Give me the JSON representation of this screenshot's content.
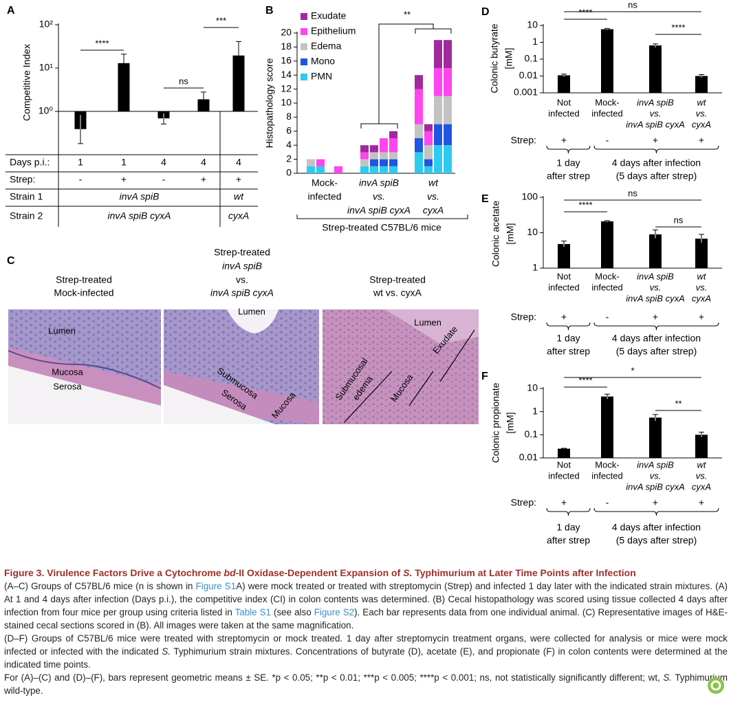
{
  "chart_data": [
    {
      "type": "bar",
      "panel": "A",
      "y_label": "Competitive Index",
      "log_scale": true,
      "ylim": [
        0.1,
        100
      ],
      "yticks": [
        {
          "value": 1,
          "label": "10⁰"
        },
        {
          "value": 10,
          "label": "10¹"
        },
        {
          "value": 100,
          "label": "10²"
        }
      ],
      "values": [
        0.39,
        13,
        0.69,
        1.9,
        19.5
      ],
      "errors_low": [
        0.18,
        5.5,
        0.51,
        1.08,
        6.9
      ],
      "errors_high": [
        0.83,
        21,
        0.9,
        2.8,
        41
      ],
      "color": "#000000",
      "annotations": [
        "****",
        "ns",
        "***"
      ],
      "table": {
        "rows": [
          [
            "Days p.i.:",
            "1",
            "1",
            "4",
            "4",
            "4"
          ],
          [
            "Strep:",
            "-",
            "+",
            "-",
            "+",
            "+"
          ],
          [
            "Strain 1",
            "invA spiB",
            "wt"
          ],
          [
            "Strain 2",
            "invA spiB cyxA",
            "cyxA"
          ]
        ]
      }
    },
    {
      "type": "stacked_bar",
      "panel": "B",
      "y_label": "Histopathology score",
      "ylim": [
        0,
        20
      ],
      "yticks": [
        0,
        2,
        4,
        6,
        8,
        10,
        12,
        14,
        16,
        18,
        20
      ],
      "legend": "upper left",
      "categories": [
        null,
        null,
        null,
        null,
        null,
        null,
        null,
        null,
        null,
        null,
        null,
        null
      ],
      "group_labels": [
        [
          "Mock-",
          "infected"
        ],
        [
          "invA spiB",
          "vs.",
          "invA spiB cyxA"
        ],
        [
          "wt",
          "vs.",
          "cyxA"
        ]
      ],
      "x_label": "Strep-treated C57BL/6 mice",
      "annotations": [
        "**"
      ],
      "series": [
        {
          "name": "PMN",
          "color": "#2ecbf0",
          "values": [
            1,
            1,
            0,
            0,
            1,
            1,
            1,
            1,
            3,
            1,
            4,
            4
          ]
        },
        {
          "name": "Mono",
          "color": "#1f55e0",
          "values": [
            0,
            0,
            0,
            0,
            0,
            1,
            1,
            1,
            2,
            1,
            3,
            3
          ]
        },
        {
          "name": "Edema",
          "color": "#c3c3c3",
          "values": [
            1,
            0,
            0,
            0,
            1,
            1,
            1,
            1,
            2,
            2,
            4,
            4
          ]
        },
        {
          "name": "Epithelium",
          "color": "#ff45ee",
          "values": [
            0,
            1,
            0,
            1,
            1,
            0,
            2,
            2,
            5,
            2,
            4,
            4
          ]
        },
        {
          "name": "Exudate",
          "color": "#a02a9c",
          "values": [
            0,
            0,
            0,
            0,
            1,
            1,
            0,
            1,
            2,
            1,
            4,
            4
          ]
        }
      ]
    },
    {
      "type": "bar",
      "panel": "D",
      "y_label": [
        "Colonic butyrate",
        "[mM]"
      ],
      "log_scale": true,
      "ylim": [
        0.001,
        10
      ],
      "yticks": [
        0.001,
        0.01,
        0.1,
        1,
        10
      ],
      "categories": [
        [
          "Not",
          "infected"
        ],
        [
          "Mock-",
          "infected"
        ],
        [
          "invA spiB",
          "vs.",
          "invA spiB cyxA"
        ],
        [
          "wt",
          "vs.",
          "cyxA"
        ]
      ],
      "values": [
        0.011,
        6,
        0.65,
        0.01
      ],
      "errors_low": [
        0.009,
        5.5,
        0.5,
        0.008
      ],
      "errors_high": [
        0.013,
        6.6,
        0.8,
        0.012
      ],
      "color": "#000000",
      "annotations": [
        "****",
        "ns",
        "****"
      ],
      "strep_label": "Strep:",
      "strep": [
        "+",
        "-",
        "+",
        "+"
      ],
      "time_groups": [
        [
          "1 day",
          "after strep"
        ],
        [
          "4 days after infection",
          "(5 days after strep)"
        ]
      ]
    },
    {
      "type": "bar",
      "panel": "E",
      "y_label": [
        "Colonic acetate",
        "[mM]"
      ],
      "log_scale": true,
      "ylim": [
        1,
        100
      ],
      "yticks": [
        1,
        10,
        100
      ],
      "categories": [
        [
          "Not",
          "infected"
        ],
        [
          "Mock-",
          "infected"
        ],
        [
          "invA spiB",
          "vs.",
          "invA spiB cyxA"
        ],
        [
          "wt",
          "vs.",
          "cyxA"
        ]
      ],
      "values": [
        4.8,
        21,
        9,
        6.8
      ],
      "errors_low": [
        4,
        20,
        7,
        5.2
      ],
      "errors_high": [
        5.8,
        22,
        12,
        9
      ],
      "color": "#000000",
      "annotations": [
        "****",
        "ns",
        "ns"
      ],
      "strep_label": "Strep:",
      "strep": [
        "+",
        "-",
        "+",
        "+"
      ],
      "time_groups": [
        [
          "1 day",
          "after strep"
        ],
        [
          "4 days after infection",
          "(5 days after strep)"
        ]
      ]
    },
    {
      "type": "bar",
      "panel": "F",
      "y_label": [
        "Colonic propionate",
        "[mM]"
      ],
      "log_scale": true,
      "ylim": [
        0.01,
        10
      ],
      "yticks": [
        0.01,
        0.1,
        1,
        10
      ],
      "categories": [
        [
          "Not",
          "infected"
        ],
        [
          "Mock-",
          "infected"
        ],
        [
          "invA spiB",
          "vs.",
          "invA spiB cyxA"
        ],
        [
          "wt",
          "vs.",
          "cyxA"
        ]
      ],
      "values": [
        0.025,
        4.5,
        0.55,
        0.1
      ],
      "errors_low": [
        0.024,
        3.5,
        0.4,
        0.08
      ],
      "errors_high": [
        0.026,
        5.7,
        0.75,
        0.13
      ],
      "color": "#000000",
      "annotations": [
        "****",
        "*",
        "**"
      ],
      "strep_label": "Strep:",
      "strep": [
        "+",
        "-",
        "+",
        "+"
      ],
      "time_groups": [
        [
          "1 day",
          "after strep"
        ],
        [
          "4 days after infection",
          "(5 days after strep)"
        ]
      ]
    }
  ],
  "panel_c": {
    "panel": "C",
    "headings": [
      [
        "Strep-treated",
        "Mock-infected"
      ],
      [
        "Strep-treated",
        "invA spiB",
        "vs.",
        "invA spiB cyxA"
      ],
      [
        "Strep-treated",
        "wt vs. cyxA"
      ]
    ],
    "labels": [
      [
        "Lumen",
        "Mucosa",
        "Serosa"
      ],
      [
        "Lumen",
        "Submucosa",
        "Serosa",
        "Mucosa"
      ],
      [
        "Lumen",
        "Submucosal",
        "edema",
        "Mucosa",
        "Exudate"
      ]
    ]
  },
  "caption": {
    "title": [
      "Figure 3. Virulence Factors Drive a Cytochrome ",
      "bd",
      "-II Oxidase-Dependent Expansion of ",
      "S.",
      " Typhimurium at Later Time Points after Infection"
    ],
    "p1": [
      "(A–C) Groups of C57BL/6 mice (n is shown in ",
      "Figure S1",
      "A) were mock treated or treated with streptomycin (Strep) and infected 1 day later with the indicated strain mixtures. (A) At 1 and 4 days after infection (Days p.i.), the competitive index (CI) in colon contents was determined. (B) Cecal histopathology was scored using tissue collected 4 days after infection from four mice per group using criteria listed in ",
      "Table S1",
      " (see also ",
      "Figure S2",
      "). Each bar represents data from one individual animal. (C) Representative images of H&E-stained cecal sections scored in (B). All images were taken at the same magnification."
    ],
    "p2": [
      "(D–F) Groups of C57BL/6 mice were treated with streptomycin or mock treated. 1 day after streptomycin treatment organs, were collected for analysis or mice were mock infected or infected with the indicated ",
      "S.",
      " Typhimurium strain mixtures. Concentrations of butyrate (D), acetate (E), and propionate (F) in colon contents were determined at the indicated time points."
    ],
    "p3": [
      "For (A)–(C) and (D)–(F), bars represent geometric means ± SE. *p < 0.05; **p < 0.01; ***p < 0.005; ****p < 0.001; ns, not statistically significantly different; wt, ",
      "S.",
      " Typhimurium wild-type."
    ]
  }
}
